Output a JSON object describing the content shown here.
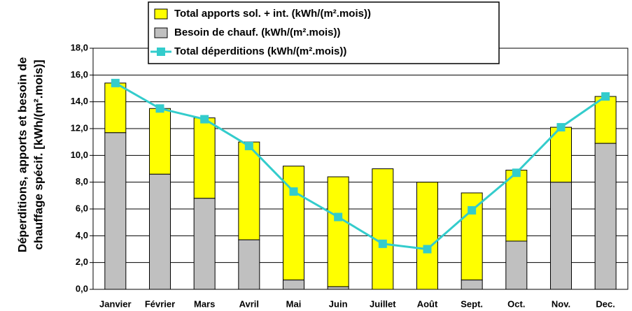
{
  "chart_data": {
    "type": "bar-line",
    "ylabel": [
      "Déperditions, apports et besoin de",
      "chauffage spécif. [kWh/(m².mois)]"
    ],
    "categories": [
      "Janvier",
      "Février",
      "Mars",
      "Avril",
      "Mai",
      "Juin",
      "Juillet",
      "Août",
      "Sept.",
      "Oct.",
      "Nov.",
      "Dec."
    ],
    "series": [
      {
        "name": "Total apports sol. + int. (kWh/(m².mois))",
        "kind": "bar",
        "color": "#ffff00",
        "values": [
          3.7,
          4.9,
          6.0,
          7.3,
          8.5,
          8.2,
          9.0,
          8.0,
          6.5,
          5.3,
          4.1,
          3.5
        ]
      },
      {
        "name": "Besoin de chauf. (kWh/(m².mois))",
        "kind": "bar",
        "color": "#c0c0c0",
        "values": [
          11.7,
          8.6,
          6.8,
          3.7,
          0.7,
          0.2,
          0,
          0,
          0.7,
          3.6,
          8.0,
          10.9
        ]
      },
      {
        "name": "Total déperditions (kWh/(m².mois))",
        "kind": "line",
        "color": "#33cccc",
        "values": [
          15.4,
          13.5,
          12.7,
          10.7,
          7.3,
          5.4,
          3.4,
          3.0,
          5.9,
          8.7,
          12.1,
          14.4
        ]
      }
    ],
    "ylim": [
      0,
      18
    ],
    "yticks": [
      {
        "value": 0,
        "label": "0,0"
      },
      {
        "value": 2,
        "label": "2,0"
      },
      {
        "value": 4,
        "label": "4,0"
      },
      {
        "value": 6,
        "label": "6,0"
      },
      {
        "value": 8,
        "label": "8,0"
      },
      {
        "value": 10,
        "label": "10,0"
      },
      {
        "value": 12,
        "label": "12,0"
      },
      {
        "value": 14,
        "label": "14,0"
      },
      {
        "value": 16,
        "label": "16,0"
      },
      {
        "value": 18,
        "label": "18,0"
      }
    ],
    "grid": true
  }
}
